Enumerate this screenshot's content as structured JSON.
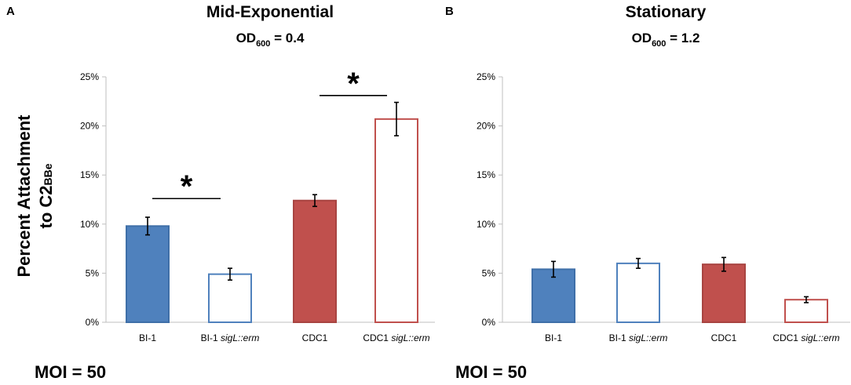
{
  "chart_data": [
    {
      "type": "bar",
      "panel_label": "A",
      "title": "Mid-Exponential",
      "subtitle": {
        "prefix": "OD",
        "subscript": "600",
        "suffix": " = 0.4"
      },
      "ylabel": {
        "line1": "Percent Attachment",
        "line2_main": "to C2",
        "line2_subscript": "BBe"
      },
      "ylim": [
        0,
        25
      ],
      "ytick_labels": [
        "0%",
        "5%",
        "10%",
        "15%",
        "20%",
        "25%"
      ],
      "categories": [
        {
          "main": "BI-1",
          "italic": ""
        },
        {
          "main": "BI-1 ",
          "italic": "sigL::erm"
        },
        {
          "main": "CDC1",
          "italic": ""
        },
        {
          "main": "CDC1 ",
          "italic": "sigL::erm"
        }
      ],
      "values": [
        9.8,
        4.9,
        12.4,
        20.7
      ],
      "errors": [
        0.9,
        0.6,
        0.6,
        1.7
      ],
      "bar_colors": [
        "#4F81BD",
        "#ffffff",
        "#C0504D",
        "#ffffff"
      ],
      "bar_edges": [
        "#3F6FA8",
        "#4F81BD",
        "#A84441",
        "#C0504D"
      ],
      "significance": [
        {
          "from": 0,
          "to": 1,
          "level": 12.6,
          "label": "*"
        },
        {
          "from": 2,
          "to": 3,
          "level": 23.1,
          "label": "*"
        }
      ],
      "annotation": "MOI = 50"
    },
    {
      "type": "bar",
      "panel_label": "B",
      "title": "Stationary",
      "subtitle": {
        "prefix": "OD",
        "subscript": "600",
        "suffix": " = 1.2"
      },
      "ylim": [
        0,
        25
      ],
      "ytick_labels": [
        "0%",
        "5%",
        "10%",
        "15%",
        "20%",
        "25%"
      ],
      "categories": [
        {
          "main": "BI-1",
          "italic": ""
        },
        {
          "main": "BI-1 ",
          "italic": "sigL::erm"
        },
        {
          "main": "CDC1",
          "italic": ""
        },
        {
          "main": "CDC1 ",
          "italic": "sigL::erm"
        }
      ],
      "values": [
        5.4,
        6.0,
        5.9,
        2.3
      ],
      "errors": [
        0.8,
        0.5,
        0.7,
        0.3
      ],
      "bar_colors": [
        "#4F81BD",
        "#ffffff",
        "#C0504D",
        "#ffffff"
      ],
      "bar_edges": [
        "#3F6FA8",
        "#4F81BD",
        "#A84441",
        "#C0504D"
      ],
      "significance": [],
      "annotation": "MOI = 50"
    }
  ]
}
